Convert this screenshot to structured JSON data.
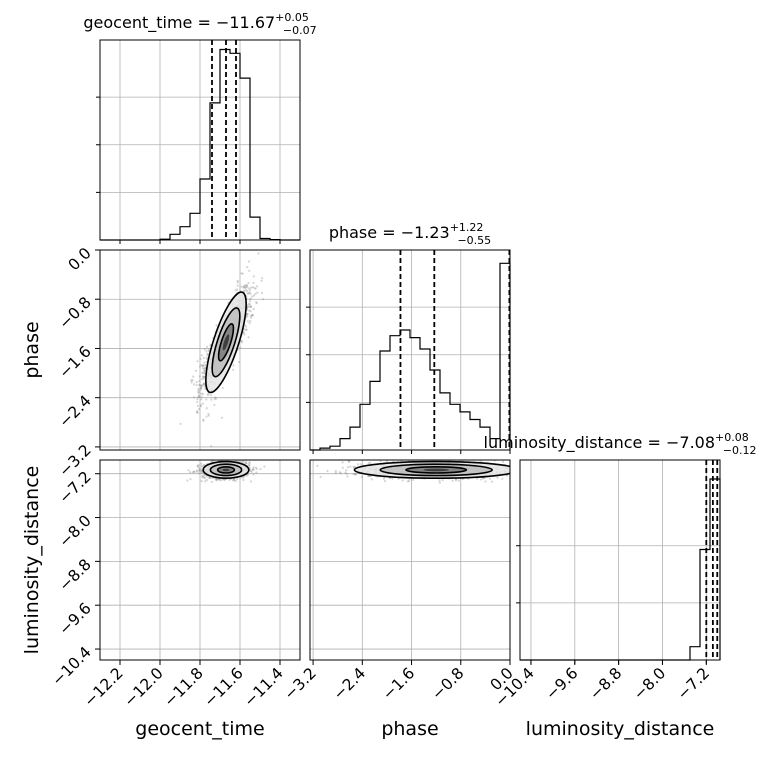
{
  "chart_data": {
    "type": "corner",
    "parameters": [
      {
        "name": "geocent_time",
        "title": {
          "prefix": "geocent_time = ",
          "median": "−11.67",
          "upper": "+0.05",
          "lower": "−0.07"
        },
        "range": [
          -12.3,
          -11.3
        ],
        "ticks": [
          {
            "value": -12.2,
            "label": "−12.2"
          },
          {
            "value": -12.0,
            "label": "−12.0"
          },
          {
            "value": -11.8,
            "label": "−11.8"
          },
          {
            "value": -11.6,
            "label": "−11.6"
          },
          {
            "value": -11.4,
            "label": "−11.4"
          }
        ],
        "quantiles": [
          -11.74,
          -11.67,
          -11.62
        ],
        "hist": {
          "edges": [
            -12.3,
            -12.25,
            -12.2,
            -12.15,
            -12.1,
            -12.05,
            -12.0,
            -11.95,
            -11.9,
            -11.85,
            -11.8,
            -11.75,
            -11.7,
            -11.65,
            -11.6,
            -11.55,
            -11.5,
            -11.45,
            -11.4,
            -11.35,
            -11.3
          ],
          "values": [
            0,
            0,
            0,
            0,
            0,
            0,
            0.004,
            0.03,
            0.07,
            0.14,
            0.32,
            0.72,
            1.0,
            0.98,
            0.85,
            0.12,
            0.008,
            0.002,
            0,
            0
          ],
          "ticks": [
            0.25,
            0.5,
            0.75
          ]
        }
      },
      {
        "name": "phase",
        "title": {
          "prefix": "phase = ",
          "median": "−1.23",
          "upper": "+1.22",
          "lower": "−0.55"
        },
        "range": [
          -3.25,
          0.0
        ],
        "ticks": [
          {
            "value": -3.2,
            "label": "−3.2"
          },
          {
            "value": -2.4,
            "label": "−2.4"
          },
          {
            "value": -1.6,
            "label": "−1.6"
          },
          {
            "value": -0.8,
            "label": "−0.8"
          },
          {
            "value": 0.0,
            "label": "0.0"
          }
        ],
        "quantiles": [
          -1.78,
          -1.23,
          -0.01
        ],
        "hist": {
          "edges": [
            -3.25,
            -3.0875,
            -2.925,
            -2.7625,
            -2.6,
            -2.4375,
            -2.275,
            -2.1125,
            -1.95,
            -1.7875,
            -1.625,
            -1.4625,
            -1.3,
            -1.1375,
            -0.975,
            -0.8125,
            -0.65,
            -0.4875,
            -0.325,
            -0.1625,
            0.0
          ],
          "values": [
            0,
            0.01,
            0.02,
            0.06,
            0.12,
            0.24,
            0.36,
            0.52,
            0.6,
            0.63,
            0.59,
            0.53,
            0.42,
            0.3,
            0.24,
            0.2,
            0.16,
            0.12,
            0.06,
            0.98
          ],
          "ticks": [
            0.25,
            0.5,
            0.75
          ]
        }
      },
      {
        "name": "luminosity_distance",
        "title": {
          "prefix": "luminosity_distance = ",
          "median": "−7.08",
          "upper": "+0.08",
          "lower": "−0.12"
        },
        "range": [
          -10.6,
          -6.95
        ],
        "ticks": [
          {
            "value": -10.4,
            "label": "−10.4"
          },
          {
            "value": -9.6,
            "label": "−9.6"
          },
          {
            "value": -8.8,
            "label": "−8.8"
          },
          {
            "value": -8.0,
            "label": "−8.0"
          },
          {
            "value": -7.2,
            "label": "−7.2"
          }
        ],
        "quantiles": [
          -7.2,
          -7.08,
          -7.0
        ],
        "hist": {
          "edges": [
            -10.6,
            -10.4175,
            -10.235,
            -10.0525,
            -9.87,
            -9.6875,
            -9.505,
            -9.3225,
            -9.14,
            -8.9575,
            -8.775,
            -8.5925,
            -8.41,
            -8.2275,
            -8.045,
            -7.8625,
            -7.68,
            -7.4975,
            -7.315,
            -7.1325,
            -6.95
          ],
          "values": [
            0,
            0,
            0,
            0,
            0,
            0,
            0,
            0,
            0,
            0,
            0,
            0,
            0,
            0,
            0,
            0,
            0,
            0.07,
            0.58,
            0.95
          ],
          "ticks": [
            0.3,
            0.6
          ]
        }
      }
    ],
    "pairs": [
      {
        "x": 0,
        "y": 1,
        "center": [
          -11.67,
          -1.5
        ],
        "spread": [
          0.06,
          0.45
        ],
        "rho": 0.8
      },
      {
        "x": 0,
        "y": 2,
        "center": [
          -11.67,
          -7.13
        ],
        "spread": [
          0.06,
          0.08
        ],
        "rho": 0.1
      },
      {
        "x": 1,
        "y": 2,
        "center": [
          -1.2,
          -7.13
        ],
        "spread": [
          0.7,
          0.08
        ],
        "rho": -0.05
      }
    ]
  }
}
